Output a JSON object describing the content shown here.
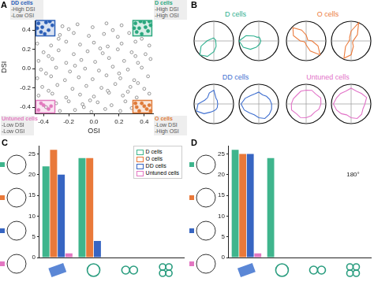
{
  "chart_data": [
    {
      "panel": "A",
      "type": "scatter",
      "xlabel": "OSI",
      "ylabel": "DSI",
      "xlim": [
        -0.47,
        0.47
      ],
      "ylim": [
        -0.47,
        0.5
      ],
      "xticks": [
        -0.4,
        -0.2,
        {
          "value": 0,
          "label": "0.0"
        },
        0.2,
        0.4
      ],
      "yticks": [
        -0.4,
        -0.2,
        {
          "value": 0,
          "label": "0.0"
        },
        0.2,
        0.4
      ],
      "grid": false,
      "series": [
        {
          "color": "#555555",
          "marker": "circle_open",
          "points": [
            [
              -0.27,
              -0.44
            ],
            [
              -0.15,
              -0.43
            ],
            [
              -0.02,
              -0.45
            ],
            [
              0.09,
              -0.42
            ],
            [
              0.21,
              -0.44
            ],
            [
              -0.3,
              -0.36
            ],
            [
              -0.2,
              -0.34
            ],
            [
              -0.09,
              -0.37
            ],
            [
              0.03,
              -0.35
            ],
            [
              0.14,
              -0.38
            ],
            [
              0.25,
              -0.34
            ],
            [
              -0.44,
              -0.28
            ],
            [
              -0.33,
              -0.26
            ],
            [
              -0.22,
              -0.3
            ],
            [
              -0.11,
              -0.27
            ],
            [
              0.0,
              -0.29
            ],
            [
              0.12,
              -0.25
            ],
            [
              0.23,
              -0.28
            ],
            [
              0.34,
              -0.3
            ],
            [
              0.44,
              -0.26
            ],
            [
              -0.41,
              -0.19
            ],
            [
              -0.29,
              -0.17
            ],
            [
              -0.17,
              -0.21
            ],
            [
              -0.06,
              -0.18
            ],
            [
              0.06,
              -0.2
            ],
            [
              0.17,
              -0.16
            ],
            [
              0.29,
              -0.19
            ],
            [
              0.4,
              -0.21
            ],
            [
              -0.45,
              -0.1
            ],
            [
              -0.34,
              -0.08
            ],
            [
              -0.23,
              -0.12
            ],
            [
              -0.12,
              -0.09
            ],
            [
              -0.01,
              -0.11
            ],
            [
              0.1,
              -0.07
            ],
            [
              0.21,
              -0.1
            ],
            [
              0.32,
              -0.12
            ],
            [
              0.43,
              -0.08
            ],
            [
              -0.42,
              -0.01
            ],
            [
              -0.3,
              0.01
            ],
            [
              -0.19,
              -0.03
            ],
            [
              -0.07,
              0.0
            ],
            [
              0.04,
              -0.02
            ],
            [
              0.15,
              0.02
            ],
            [
              0.27,
              -0.01
            ],
            [
              0.38,
              0.01
            ],
            [
              -0.44,
              0.08
            ],
            [
              -0.33,
              0.1
            ],
            [
              -0.22,
              0.06
            ],
            [
              -0.1,
              0.09
            ],
            [
              0.01,
              0.07
            ],
            [
              0.12,
              0.11
            ],
            [
              0.24,
              0.08
            ],
            [
              0.35,
              0.06
            ],
            [
              0.45,
              0.1
            ],
            [
              -0.4,
              0.17
            ],
            [
              -0.28,
              0.19
            ],
            [
              -0.16,
              0.15
            ],
            [
              -0.05,
              0.18
            ],
            [
              0.07,
              0.16
            ],
            [
              0.19,
              0.2
            ],
            [
              0.3,
              0.17
            ],
            [
              0.41,
              0.15
            ],
            [
              -0.45,
              0.26
            ],
            [
              -0.34,
              0.24
            ],
            [
              -0.22,
              0.28
            ],
            [
              -0.11,
              0.25
            ],
            [
              0.0,
              0.27
            ],
            [
              0.11,
              0.23
            ],
            [
              0.22,
              0.26
            ],
            [
              0.33,
              0.28
            ],
            [
              0.44,
              0.24
            ],
            [
              -0.27,
              0.35
            ],
            [
              -0.16,
              0.37
            ],
            [
              -0.04,
              0.34
            ],
            [
              0.08,
              0.36
            ],
            [
              0.19,
              0.33
            ],
            [
              0.28,
              0.37
            ],
            [
              -0.25,
              0.44
            ],
            [
              -0.13,
              0.46
            ],
            [
              -0.01,
              0.43
            ],
            [
              0.1,
              0.47
            ],
            [
              0.22,
              0.45
            ],
            [
              -0.38,
              -0.4
            ],
            [
              -0.08,
              -0.4
            ],
            [
              0.3,
              -0.41
            ],
            [
              -0.36,
              -0.23
            ],
            [
              0.11,
              -0.23
            ],
            [
              0.35,
              -0.15
            ],
            [
              -0.38,
              -0.05
            ],
            [
              0.2,
              -0.05
            ],
            [
              -0.15,
              0.03
            ],
            [
              0.33,
              0.13
            ],
            [
              -0.36,
              0.13
            ],
            [
              0.05,
              0.21
            ],
            [
              -0.28,
              0.31
            ],
            [
              0.38,
              0.31
            ],
            [
              0.15,
              0.4
            ],
            [
              -0.2,
              0.41
            ],
            [
              0.27,
              -0.24
            ],
            [
              -0.03,
              -0.33
            ]
          ]
        },
        {
          "name": "DD cells",
          "color": "#2b5fb8",
          "marker": "circle",
          "criteria": [
            "-High DSI",
            "-Low OSI"
          ],
          "box": {
            "x": [
              -0.46,
              -0.31
            ],
            "y": [
              0.34,
              0.5
            ]
          },
          "points": [
            [
              -0.44,
              0.47
            ],
            [
              -0.41,
              0.43
            ],
            [
              -0.38,
              0.48
            ],
            [
              -0.36,
              0.4
            ],
            [
              -0.42,
              0.38
            ],
            [
              -0.33,
              0.45
            ],
            [
              -0.39,
              0.36
            ],
            [
              -0.45,
              0.42
            ],
            [
              -0.35,
              0.49
            ]
          ]
        },
        {
          "name": "D cells",
          "color": "#2aa87e",
          "marker": "circle",
          "criteria": [
            "-High DSI",
            "-High OSI"
          ],
          "box": {
            "x": [
              0.31,
              0.46
            ],
            "y": [
              0.34,
              0.5
            ]
          },
          "points": [
            [
              0.33,
              0.47
            ],
            [
              0.36,
              0.42
            ],
            [
              0.4,
              0.48
            ],
            [
              0.43,
              0.39
            ],
            [
              0.38,
              0.36
            ],
            [
              0.45,
              0.45
            ],
            [
              0.34,
              0.38
            ],
            [
              0.41,
              0.43
            ],
            [
              0.37,
              0.49
            ],
            [
              0.44,
              0.49
            ],
            [
              0.32,
              0.42
            ]
          ]
        },
        {
          "name": "Untuned cells",
          "color": "#e27bbf",
          "marker": "circle",
          "criteria": [
            "-Low DSI",
            "-Low OSI"
          ],
          "box": {
            "x": [
              -0.46,
              -0.31
            ],
            "y": [
              -0.46,
              -0.33
            ]
          },
          "points": [
            [
              -0.44,
              -0.43
            ],
            [
              -0.4,
              -0.38
            ],
            [
              -0.36,
              -0.42
            ],
            [
              -0.42,
              -0.36
            ],
            [
              -0.34,
              -0.39
            ]
          ]
        },
        {
          "name": "O cells",
          "color": "#e07b39",
          "marker": "circle",
          "criteria": [
            "-Low DSI",
            "-High OSI"
          ],
          "box": {
            "x": [
              0.31,
              0.46
            ],
            "y": [
              -0.46,
              -0.33
            ]
          },
          "points": [
            [
              0.34,
              -0.4
            ],
            [
              0.38,
              -0.36
            ],
            [
              0.42,
              -0.42
            ],
            [
              0.44,
              -0.38
            ],
            [
              0.36,
              -0.44
            ],
            [
              0.4,
              -0.39
            ],
            [
              0.45,
              -0.44
            ],
            [
              0.33,
              -0.36
            ]
          ]
        }
      ]
    },
    {
      "panel": "B",
      "type": "radar",
      "x": [
        0,
        22.5,
        45,
        67.5,
        90,
        112.5,
        135,
        157.5,
        180,
        202.5,
        225,
        247.5,
        270,
        292.5,
        315,
        337.5
      ],
      "ylim": [
        0,
        1
      ],
      "yticks": [
        0,
        1
      ],
      "tick_labels": false,
      "series": [
        {
          "name": "D cells",
          "color": "#2fb08f",
          "plots": [
            [
              0.15,
              0.1,
              0.1,
              0.1,
              0.1,
              0.1,
              0.15,
              0.3,
              0.55,
              0.85,
              1.0,
              0.7,
              0.35,
              0.2,
              0.15,
              0.15
            ],
            [
              0.2,
              0.15,
              0.1,
              0.1,
              0.1,
              0.1,
              0.1,
              0.15,
              0.2,
              0.35,
              0.6,
              0.85,
              1.0,
              0.7,
              0.35,
              0.2
            ]
          ]
        },
        {
          "name": "O cells",
          "color": "#ec7b3c",
          "plots": [
            [
              0.3,
              0.15,
              0.1,
              0.1,
              0.3,
              0.65,
              1.0,
              0.55,
              0.2,
              0.1,
              0.1,
              0.1,
              0.3,
              0.7,
              0.95,
              0.6
            ],
            [
              0.5,
              1.0,
              0.45,
              0.15,
              0.1,
              0.1,
              0.1,
              0.3,
              0.7,
              0.95,
              0.4,
              0.15,
              0.1,
              0.1,
              0.1,
              0.2
            ]
          ]
        },
        {
          "name": "DD cells",
          "color": "#3f6fd0",
          "plots": [
            [
              0.7,
              0.3,
              0.25,
              0.2,
              0.2,
              0.2,
              0.25,
              0.3,
              0.35,
              0.45,
              0.7,
              0.95,
              0.8,
              0.5,
              0.45,
              0.6
            ],
            [
              0.6,
              0.5,
              0.55,
              0.6,
              0.65,
              0.7,
              0.75,
              0.8,
              0.7,
              0.6,
              0.65,
              0.8,
              0.9,
              0.75,
              0.6,
              0.55
            ]
          ]
        },
        {
          "name": "Untuned cells",
          "color": "#e273c8",
          "plots": [
            [
              0.7,
              0.75,
              0.7,
              0.8,
              0.75,
              0.7,
              0.6,
              0.65,
              0.7,
              0.75,
              0.7,
              0.8,
              0.75,
              0.7,
              0.65,
              0.7
            ],
            [
              0.8,
              0.7,
              0.75,
              0.85,
              0.7,
              0.65,
              0.75,
              0.8,
              0.7,
              0.6,
              0.7,
              0.8,
              0.9,
              0.8,
              0.75,
              0.7
            ]
          ]
        }
      ]
    },
    {
      "panel": "C",
      "type": "bar",
      "categories": [
        null,
        null,
        null,
        null
      ],
      "ylim": [
        0,
        27
      ],
      "yticks": [
        0,
        5,
        10,
        15,
        20,
        25
      ],
      "grid": false,
      "tick_labels": "y",
      "legend": "upper right",
      "series": [
        {
          "name": "D cells",
          "color": "#3fb58d",
          "values": [
            22,
            24,
            0,
            0
          ]
        },
        {
          "name": "O cells",
          "color": "#e9793a",
          "values": [
            26,
            24,
            0,
            0
          ]
        },
        {
          "name": "DD cells",
          "color": "#3765c2",
          "values": [
            20,
            4,
            0,
            0
          ]
        },
        {
          "name": "Untuned cells",
          "color": "#e377c2",
          "values": [
            1,
            0,
            0,
            0
          ]
        }
      ]
    },
    {
      "panel": "D",
      "type": "bar",
      "categories": [
        null,
        null,
        null,
        null
      ],
      "ylim": [
        0,
        27
      ],
      "yticks": [
        0,
        5,
        10,
        15,
        20,
        25
      ],
      "grid": false,
      "tick_labels": "y",
      "annotations": [
        {
          "text": "180°",
          "x": 3,
          "y": 20
        }
      ],
      "series": [
        {
          "color": "#3fb58d",
          "values": [
            26,
            24,
            0,
            0
          ]
        },
        {
          "color": "#e9793a",
          "values": [
            25,
            0,
            0,
            0
          ]
        },
        {
          "color": "#3765c2",
          "values": [
            25,
            0,
            0,
            0
          ]
        },
        {
          "color": "#e377c2",
          "values": [
            1,
            0,
            0,
            0
          ]
        }
      ]
    }
  ]
}
